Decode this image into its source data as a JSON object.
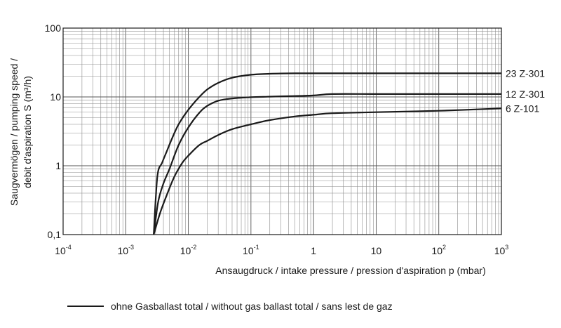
{
  "chart_data": {
    "type": "line",
    "xscale": "log",
    "yscale": "log",
    "xlim": [
      0.0001,
      1000
    ],
    "ylim": [
      0.1,
      100
    ],
    "grid": true,
    "xlabel": "Ansaugdruck / intake pressure / pression d'aspiration p (mbar)",
    "ylabel_line1": "Saugvermögen / pumping speed /",
    "ylabel_line2": "debit d'aspiration S (m³/h)",
    "x_ticks": [
      {
        "base": "10",
        "exp": "-4"
      },
      {
        "base": "10",
        "exp": "-3"
      },
      {
        "base": "10",
        "exp": "-2"
      },
      {
        "base": "10",
        "exp": "-1"
      },
      {
        "base": "1",
        "exp": ""
      },
      {
        "base": "10",
        "exp": ""
      },
      {
        "base": "10",
        "exp": "2"
      },
      {
        "base": "10",
        "exp": "3"
      }
    ],
    "y_ticks": [
      "0,1",
      "1",
      "10",
      "100"
    ],
    "series": [
      {
        "name": "23 Z-301",
        "x": [
          0.0028,
          0.0032,
          0.0038,
          0.0045,
          0.0055,
          0.007,
          0.01,
          0.015,
          0.02,
          0.03,
          0.05,
          0.1,
          0.2,
          0.5,
          1,
          10,
          100,
          1000
        ],
        "y": [
          0.1,
          0.7,
          1.1,
          1.6,
          2.5,
          4,
          6.5,
          10,
          12.8,
          16,
          19,
          21,
          21.7,
          22,
          22,
          22,
          22,
          22
        ]
      },
      {
        "name": "12 Z-301",
        "x": [
          0.0028,
          0.0033,
          0.004,
          0.005,
          0.007,
          0.01,
          0.015,
          0.02,
          0.03,
          0.05,
          0.1,
          0.2,
          0.5,
          1,
          2,
          10,
          100,
          1000
        ],
        "y": [
          0.1,
          0.3,
          0.55,
          0.9,
          2,
          3.6,
          5.9,
          7.4,
          8.8,
          9.5,
          9.9,
          10.1,
          10.3,
          10.5,
          11,
          11,
          11,
          11
        ]
      },
      {
        "name": "6 Z-101",
        "x": [
          0.0028,
          0.0035,
          0.0045,
          0.006,
          0.008,
          0.01,
          0.015,
          0.02,
          0.03,
          0.05,
          0.1,
          0.2,
          0.5,
          1,
          2,
          10,
          100,
          1000
        ],
        "y": [
          0.1,
          0.2,
          0.37,
          0.7,
          1.1,
          1.4,
          2.0,
          2.3,
          2.8,
          3.4,
          4.0,
          4.6,
          5.2,
          5.5,
          5.8,
          6.0,
          6.3,
          6.8
        ]
      }
    ],
    "legend": {
      "position": "bottom-left",
      "text": "ohne Gasballast total / without gas ballast total / sans lest de gaz"
    }
  }
}
